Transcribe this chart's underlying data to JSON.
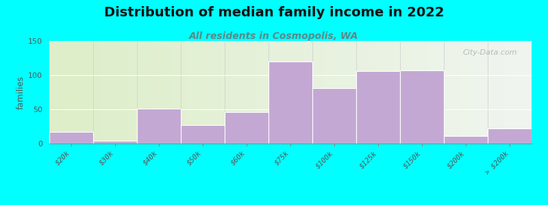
{
  "title": "Distribution of median family income in 2022",
  "subtitle": "All residents in Cosmopolis, WA",
  "ylabel": "families",
  "background_outer": "#00FFFF",
  "bar_color": "#c4a8d4",
  "bar_edge_color": "#ffffff",
  "title_fontsize": 14,
  "subtitle_fontsize": 10,
  "subtitle_color": "#5a8a8a",
  "categories": [
    "$20k",
    "$30k",
    "$40k",
    "$50k",
    "$60k",
    "$75k",
    "$100k",
    "$125k",
    "$150k",
    "$200k",
    "> $200k"
  ],
  "values": [
    17,
    4,
    51,
    27,
    46,
    120,
    81,
    106,
    107,
    11,
    22
  ],
  "ylim": [
    0,
    150
  ],
  "yticks": [
    0,
    50,
    100,
    150
  ],
  "watermark": "City-Data.com",
  "bg_left_color": "#ddeec8",
  "bg_right_color": "#f0f5f0"
}
